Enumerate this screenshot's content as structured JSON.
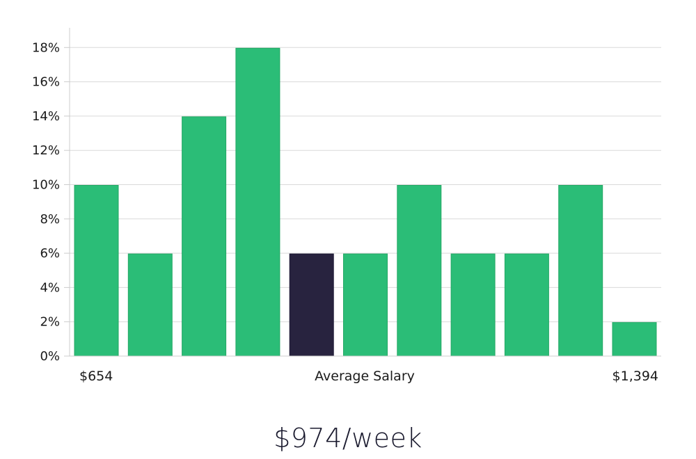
{
  "chart_data": {
    "type": "bar",
    "categories": [
      "1",
      "2",
      "3",
      "4",
      "5",
      "6",
      "7",
      "8",
      "9",
      "10",
      "11"
    ],
    "values": [
      10,
      6,
      14,
      18,
      6,
      6,
      10,
      6,
      6,
      10,
      2
    ],
    "highlight_index": 4,
    "ylim": [
      0,
      19
    ],
    "yticks": [
      0,
      2,
      4,
      6,
      8,
      10,
      12,
      14,
      16,
      18
    ],
    "ytick_suffix": "%",
    "x_min_label": "$654",
    "xlabel": "Average Salary",
    "x_max_label": "$1,394",
    "grid": true,
    "colors": {
      "bar": "#2bbd77",
      "highlight": "#28233f",
      "grid": "#d9d9d9",
      "axis": "#cccccc"
    }
  },
  "average": {
    "value": "$974/week"
  }
}
